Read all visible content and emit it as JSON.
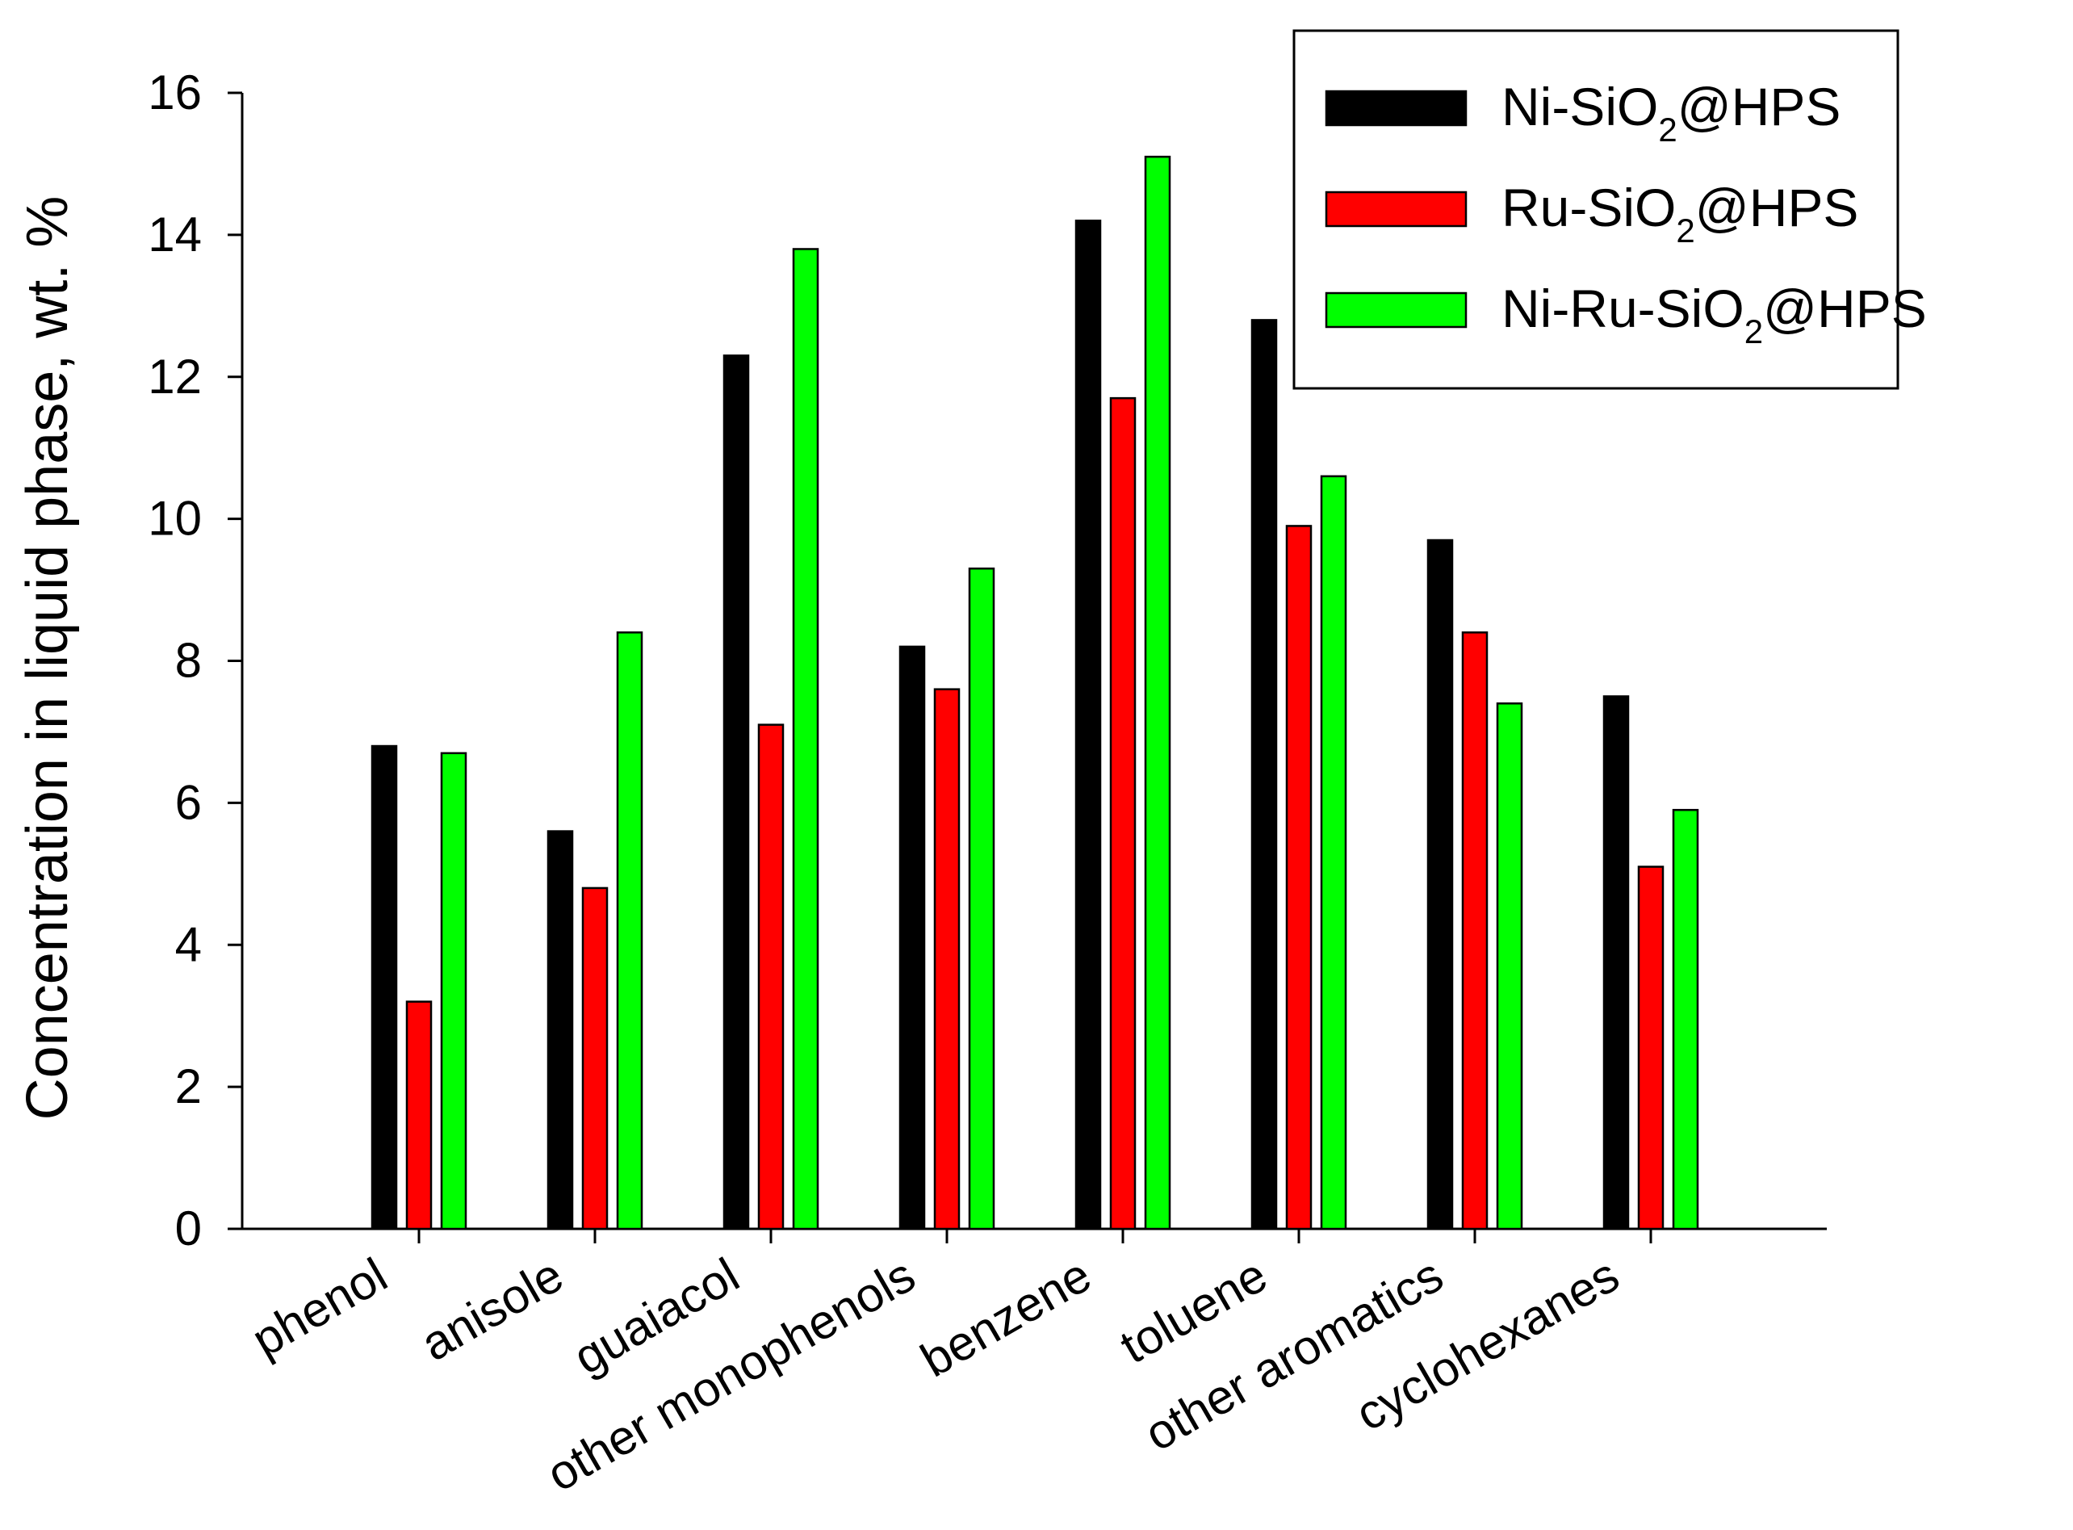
{
  "chart_data": {
    "type": "bar",
    "title": "",
    "xlabel": "",
    "ylabel": "Concentration in liquid phase, wt. %",
    "ylim": [
      0,
      16
    ],
    "yticks": [
      0,
      2,
      4,
      6,
      8,
      10,
      12,
      14,
      16
    ],
    "grid": false,
    "legend_position": "top-right",
    "categories": [
      "phenol",
      "anisole",
      "guaiacol",
      "other monophenols",
      "benzene",
      "toluene",
      "other aromatics",
      "cyclohexanes"
    ],
    "series": [
      {
        "name": "Ni-SiO2@HPS",
        "label_parts": [
          "Ni-SiO",
          "2",
          "@HPS"
        ],
        "color": "#000000",
        "values": [
          6.8,
          5.6,
          12.3,
          8.2,
          14.2,
          12.8,
          9.7,
          7.5
        ]
      },
      {
        "name": "Ru-SiO2@HPS",
        "label_parts": [
          "Ru-SiO",
          "2",
          "@HPS"
        ],
        "color": "#ff0000",
        "values": [
          3.2,
          4.8,
          7.1,
          7.6,
          11.7,
          9.9,
          8.4,
          5.1
        ]
      },
      {
        "name": "Ni-Ru-SiO2@HPS",
        "label_parts": [
          "Ni-Ru-SiO",
          "2",
          "@HPS"
        ],
        "color": "#00ff00",
        "values": [
          6.7,
          8.4,
          13.8,
          9.3,
          15.1,
          10.6,
          7.4,
          5.9
        ]
      }
    ]
  }
}
